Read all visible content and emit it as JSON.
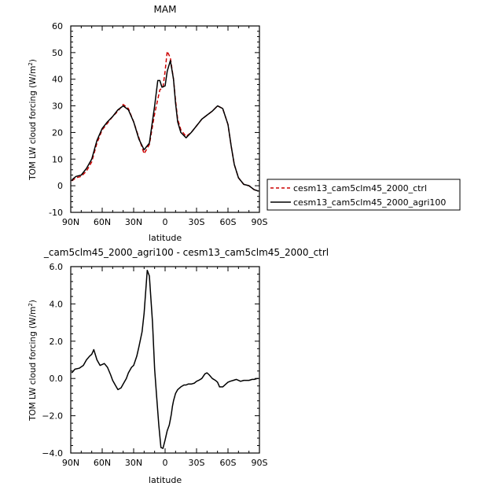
{
  "chart_data": [
    {
      "type": "line",
      "title": "MAM",
      "xlabel": "latitude",
      "ylabel": "TOM  LW  cloud  forcing  (W/m",
      "ylabel_sup": "2",
      "ylabel_close": ")",
      "xlim": [
        90,
        -90
      ],
      "ylim": [
        -10,
        60
      ],
      "x_ticks": [
        90,
        60,
        30,
        0,
        -30,
        -60,
        -90
      ],
      "x_tick_labels": [
        "90N",
        "60N",
        "30N",
        "0",
        "30S",
        "60S",
        "90S"
      ],
      "y_ticks": [
        -10,
        0,
        10,
        20,
        30,
        40,
        50,
        60
      ],
      "y_tick_labels": [
        "-10",
        "0",
        "10",
        "20",
        "30",
        "40",
        "50",
        "60"
      ],
      "legend_position": "right",
      "series": [
        {
          "name": "cesm13_cam5clm45_2000_ctrl",
          "color": "#cc0000",
          "dash": "dashed",
          "x": [
            89,
            85,
            80,
            75,
            70,
            65,
            60,
            55,
            50,
            45,
            40,
            35,
            30,
            25,
            20,
            15,
            10,
            5,
            2,
            0,
            -2,
            -5,
            -8,
            -10,
            -12,
            -15,
            -20,
            -25,
            -30,
            -35,
            -40,
            -45,
            -50,
            -55,
            -60,
            -63,
            -66,
            -70,
            -75,
            -80,
            -85,
            -89
          ],
          "y": [
            1.8,
            3,
            3.5,
            5.5,
            9,
            16,
            21,
            23.5,
            26,
            28,
            30.5,
            29,
            24,
            18,
            12,
            15.5,
            27,
            36,
            37,
            43,
            50.5,
            48,
            40,
            32,
            25,
            21,
            18.5,
            20,
            22.5,
            25,
            26.5,
            28,
            30,
            29,
            23,
            15,
            8,
            3,
            0.5,
            0,
            -1.5,
            -2
          ]
        },
        {
          "name": "cesm13_cam5clm45_2000_agri100",
          "color": "#000000",
          "dash": "solid",
          "x": [
            89,
            85,
            80,
            75,
            70,
            65,
            60,
            55,
            50,
            45,
            40,
            35,
            30,
            25,
            20,
            15,
            10,
            7,
            5,
            3,
            0,
            -2,
            -5,
            -8,
            -10,
            -12,
            -15,
            -20,
            -25,
            -30,
            -35,
            -40,
            -45,
            -50,
            -55,
            -60,
            -63,
            -66,
            -70,
            -75,
            -80,
            -85,
            -89
          ],
          "y": [
            2.2,
            3.5,
            4,
            6.5,
            10,
            17,
            21.5,
            24,
            26,
            28.5,
            30,
            28.5,
            24,
            17.5,
            13.5,
            16,
            30,
            39.5,
            39.5,
            37,
            37.5,
            43,
            47,
            40,
            31,
            24,
            20,
            18,
            20,
            22.5,
            25,
            26.5,
            28,
            30,
            29,
            23,
            15,
            8,
            3,
            0.5,
            0,
            -1.5,
            -2
          ]
        }
      ]
    },
    {
      "type": "line",
      "title": "_cam5clm45_2000_agri100 - cesm13_cam5clm45_2000_ctrl",
      "xlabel": "latitude",
      "ylabel": "TOM  LW  cloud  forcing  (W/m",
      "ylabel_sup": "2",
      "ylabel_close": ")",
      "xlim": [
        90,
        -90
      ],
      "ylim": [
        -4,
        6
      ],
      "x_ticks": [
        90,
        60,
        30,
        0,
        -30,
        -60,
        -90
      ],
      "x_tick_labels": [
        "90N",
        "60N",
        "30N",
        "0",
        "30S",
        "60S",
        "90S"
      ],
      "y_ticks": [
        -4,
        -2,
        0,
        2,
        4,
        6
      ],
      "y_tick_labels": [
        "−4.0",
        "−2.0",
        "0.0",
        "2.0",
        "4.0",
        "6.0"
      ],
      "series": [
        {
          "name": "",
          "color": "#000000",
          "dash": "solid",
          "x": [
            89,
            86,
            82,
            78,
            75,
            72,
            70,
            68,
            65,
            62,
            60,
            58,
            55,
            52,
            50,
            47,
            45,
            42,
            40,
            37,
            35,
            32,
            30,
            27,
            25,
            22,
            20,
            17,
            15,
            12,
            10,
            8,
            6,
            4,
            2,
            0,
            -2,
            -4,
            -5,
            -6,
            -7,
            -8,
            -10,
            -12,
            -15,
            -18,
            -20,
            -22,
            -25,
            -28,
            -30,
            -32,
            -35,
            -38,
            -40,
            -42,
            -45,
            -48,
            -50,
            -52,
            -55,
            -58,
            -60,
            -62,
            -65,
            -68,
            -70,
            -72,
            -75,
            -78,
            -80,
            -83,
            -85,
            -88,
            -89
          ],
          "y": [
            0.3,
            0.5,
            0.55,
            0.7,
            1.0,
            1.2,
            1.3,
            1.55,
            1.0,
            0.7,
            0.75,
            0.8,
            0.6,
            0.2,
            -0.1,
            -0.4,
            -0.6,
            -0.5,
            -0.3,
            0.0,
            0.3,
            0.6,
            0.7,
            1.2,
            1.7,
            2.5,
            3.5,
            5.8,
            5.5,
            3.0,
            0.5,
            -1.0,
            -2.5,
            -3.7,
            -3.75,
            -3.3,
            -2.8,
            -2.5,
            -2.2,
            -1.9,
            -1.5,
            -1.2,
            -0.8,
            -0.6,
            -0.45,
            -0.35,
            -0.35,
            -0.3,
            -0.3,
            -0.25,
            -0.15,
            -0.1,
            0.0,
            0.25,
            0.3,
            0.2,
            0.0,
            -0.1,
            -0.2,
            -0.45,
            -0.45,
            -0.3,
            -0.2,
            -0.15,
            -0.1,
            -0.05,
            -0.1,
            -0.15,
            -0.1,
            -0.1,
            -0.1,
            -0.05,
            -0.05,
            0.0,
            0.0
          ]
        }
      ]
    }
  ]
}
